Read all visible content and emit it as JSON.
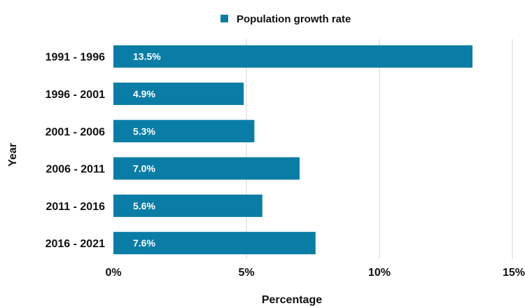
{
  "chart_data": {
    "type": "bar",
    "orientation": "horizontal",
    "categories": [
      "1991 - 1996",
      "1996 - 2001",
      "2001 - 2006",
      "2006 - 2011",
      "2011 - 2016",
      "2016 - 2021"
    ],
    "series": [
      {
        "name": "Population growth rate",
        "values": [
          13.5,
          4.9,
          5.3,
          7.0,
          5.6,
          7.6
        ],
        "data_labels": [
          "13.5%",
          "4.9%",
          "5.3%",
          "7.0%",
          "5.6%",
          "7.6%"
        ],
        "color": "#0a7da6"
      }
    ],
    "xlabel": "Percentage",
    "ylabel": "Year",
    "xlim": [
      0,
      15
    ],
    "x_ticks": [
      0,
      5,
      10,
      15
    ],
    "x_tick_labels": [
      "0%",
      "5%",
      "10%",
      "15%"
    ],
    "grid": "vertical",
    "gridline_color": "#d6d6d6",
    "legend_position": "top-center",
    "label_color": "#ffffff"
  }
}
